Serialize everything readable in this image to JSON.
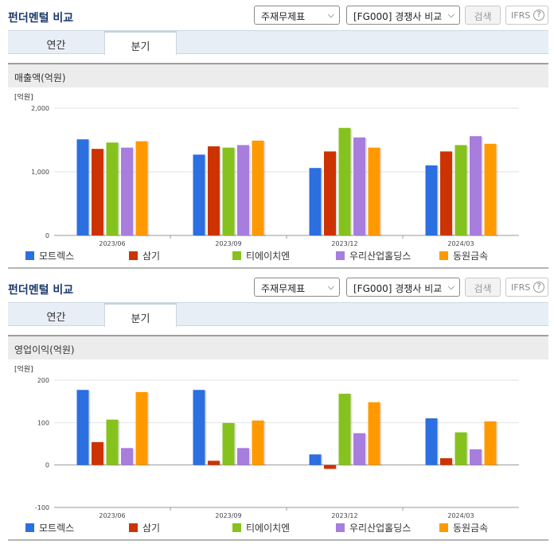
{
  "panels": [
    {
      "header": {
        "title": "펀더멘털 비교",
        "select_statement": "주재무제표",
        "select_compare": "[FG000] 경쟁사 비교",
        "search_label": "검색",
        "ifrs_label": "IFRS",
        "help_glyph": "?"
      },
      "tabs": {
        "annual": "연간",
        "quarter": "분기"
      },
      "section_title": "매출액(억원)",
      "chart_data": {
        "type": "bar",
        "unit_label": "[억원]",
        "categories": [
          "2023/06",
          "2023/09",
          "2023/12",
          "2024/03"
        ],
        "ylim": [
          0,
          2000
        ],
        "yticks": [
          0,
          1000,
          2000
        ],
        "ytick_labels": [
          "0",
          "1,000",
          "2,000"
        ],
        "series": [
          {
            "name": "모트렉스",
            "color": "#2b6fe0",
            "values": [
              1510,
              1270,
              1060,
              1100
            ]
          },
          {
            "name": "삼기",
            "color": "#cc3300",
            "values": [
              1360,
              1400,
              1320,
              1320
            ]
          },
          {
            "name": "티에이치엔",
            "color": "#86c21d",
            "values": [
              1460,
              1380,
              1690,
              1420
            ]
          },
          {
            "name": "우리산업홀딩스",
            "color": "#a77ddd",
            "values": [
              1380,
              1420,
              1540,
              1560
            ]
          },
          {
            "name": "동원금속",
            "color": "#ff9900",
            "values": [
              1480,
              1490,
              1380,
              1440
            ]
          }
        ]
      }
    },
    {
      "header": {
        "title": "펀더멘털 비교",
        "select_statement": "주재무제표",
        "select_compare": "[FG000] 경쟁사 비교",
        "search_label": "검색",
        "ifrs_label": "IFRS",
        "help_glyph": "?"
      },
      "tabs": {
        "annual": "연간",
        "quarter": "분기"
      },
      "section_title": "영업이익(억원)",
      "chart_data": {
        "type": "bar",
        "unit_label": "[억원]",
        "categories": [
          "2023/06",
          "2023/09",
          "2023/12",
          "2024/03"
        ],
        "ylim": [
          -100,
          200
        ],
        "yticks": [
          -100,
          0,
          100,
          200
        ],
        "ytick_labels": [
          "-100",
          "0",
          "100",
          "200"
        ],
        "series": [
          {
            "name": "모트렉스",
            "color": "#2b6fe0",
            "values": [
              177,
              177,
              25,
              110
            ]
          },
          {
            "name": "삼기",
            "color": "#cc3300",
            "values": [
              54,
              10,
              -9,
              16
            ]
          },
          {
            "name": "티에이치엔",
            "color": "#86c21d",
            "values": [
              107,
              99,
              168,
              77
            ]
          },
          {
            "name": "우리산업홀딩스",
            "color": "#a77ddd",
            "values": [
              40,
              40,
              75,
              37
            ]
          },
          {
            "name": "동원금속",
            "color": "#ff9900",
            "values": [
              172,
              105,
              148,
              103
            ]
          }
        ]
      }
    }
  ]
}
